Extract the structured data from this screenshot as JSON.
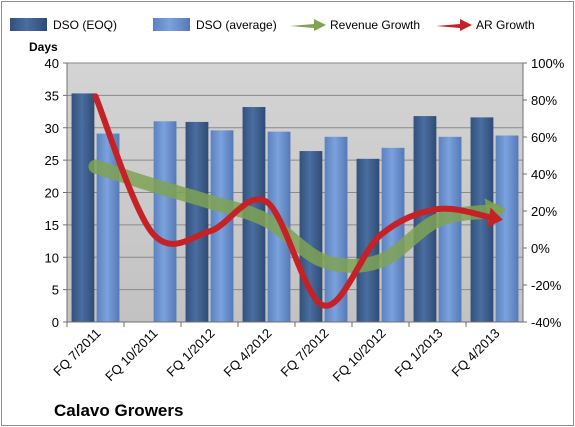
{
  "chart_data": {
    "type": "bar",
    "company_label": "Calavo Growers",
    "ylabel": "Days",
    "categories": [
      "FQ 7/2011",
      "FQ 10/2011",
      "FQ 1/2012",
      "FQ 4/2012",
      "FQ 7/2012",
      "FQ 10/2012",
      "FQ 1/2013",
      "FQ 4/2013"
    ],
    "ylim": [
      0,
      40
    ],
    "y_ticks": [
      "0",
      "5",
      "10",
      "15",
      "20",
      "25",
      "30",
      "35",
      "40"
    ],
    "y2lim": [
      -40,
      100
    ],
    "y2_ticks": [
      "-40%",
      "-20%",
      "0%",
      "20%",
      "40%",
      "60%",
      "80%",
      "100%"
    ],
    "series": [
      {
        "name": "DSO (EOQ)",
        "kind": "bar",
        "color": "#3e5f8e",
        "values": [
          35.3,
          null,
          30.9,
          33.2,
          26.4,
          25.2,
          31.8,
          31.6
        ]
      },
      {
        "name": "DSO (average)",
        "kind": "bar",
        "color": "#6c92cf",
        "values": [
          29.1,
          31.0,
          29.6,
          29.4,
          28.6,
          26.9,
          28.6,
          28.8
        ]
      },
      {
        "name": "Revenue Growth",
        "kind": "arrow",
        "axis": "secondary",
        "color": "#7fa254",
        "values": [
          44,
          34,
          25,
          15,
          -7,
          -7,
          15,
          20
        ]
      },
      {
        "name": "AR Growth",
        "kind": "arrow",
        "axis": "secondary",
        "color": "#c42226",
        "values": [
          82,
          8,
          9,
          25,
          -31,
          7,
          21,
          16
        ]
      }
    ],
    "grid": true,
    "legend_position": "top"
  }
}
